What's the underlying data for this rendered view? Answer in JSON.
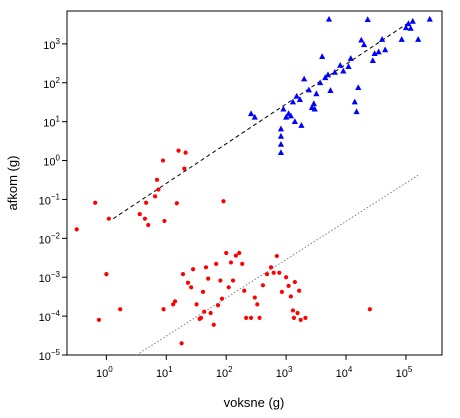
{
  "chart_data": {
    "type": "scatter",
    "title": "",
    "xlabel": "voksne (g)",
    "ylabel": "afkom (g)",
    "xscale": "log10",
    "yscale": "log10",
    "xlim": [
      0.22,
      400000
    ],
    "ylim": [
      1e-05,
      7000
    ],
    "grid": false,
    "legend": "none",
    "x_ticks": [
      {
        "value": 1,
        "label": "10",
        "exp": "0"
      },
      {
        "value": 10,
        "label": "10",
        "exp": "1"
      },
      {
        "value": 100,
        "label": "10",
        "exp": "2"
      },
      {
        "value": 1000,
        "label": "10",
        "exp": "3"
      },
      {
        "value": 10000,
        "label": "10",
        "exp": "4"
      },
      {
        "value": 100000,
        "label": "10",
        "exp": "5"
      }
    ],
    "y_ticks": [
      {
        "value": 1e-05,
        "label": "10",
        "exp": "−5"
      },
      {
        "value": 0.0001,
        "label": "10",
        "exp": "−4"
      },
      {
        "value": 0.001,
        "label": "10",
        "exp": "−3"
      },
      {
        "value": 0.01,
        "label": "10",
        "exp": "−2"
      },
      {
        "value": 0.1,
        "label": "10",
        "exp": "−1"
      },
      {
        "value": 1,
        "label": "10",
        "exp": "0"
      },
      {
        "value": 10,
        "label": "10",
        "exp": "1"
      },
      {
        "value": 100,
        "label": "10",
        "exp": "2"
      },
      {
        "value": 1000,
        "label": "10",
        "exp": "3"
      }
    ],
    "series": [
      {
        "marker": "triangle",
        "color": "#0000ff",
        "points": [
          [
            260,
            16
          ],
          [
            300,
            13
          ],
          [
            820,
            6.5
          ],
          [
            820,
            4.2
          ],
          [
            820,
            2.6
          ],
          [
            820,
            1.6
          ],
          [
            900,
            21
          ],
          [
            1000,
            13
          ],
          [
            1100,
            16
          ],
          [
            1200,
            14
          ],
          [
            1300,
            32
          ],
          [
            1400,
            10
          ],
          [
            1500,
            45
          ],
          [
            1700,
            37
          ],
          [
            1800,
            8
          ],
          [
            2000,
            125
          ],
          [
            2400,
            65
          ],
          [
            2700,
            23
          ],
          [
            2900,
            29
          ],
          [
            3000,
            21
          ],
          [
            3200,
            52
          ],
          [
            3700,
            100
          ],
          [
            4000,
            470
          ],
          [
            4500,
            135
          ],
          [
            5000,
            160
          ],
          [
            5200,
            4300
          ],
          [
            5500,
            63
          ],
          [
            6500,
            185
          ],
          [
            8000,
            280
          ],
          [
            9000,
            200
          ],
          [
            11000,
            260
          ],
          [
            12000,
            420
          ],
          [
            14000,
            32
          ],
          [
            15000,
            18
          ],
          [
            16000,
            75
          ],
          [
            18000,
            1250
          ],
          [
            20000,
            950
          ],
          [
            23000,
            4200
          ],
          [
            28000,
            370
          ],
          [
            30000,
            560
          ],
          [
            35000,
            620
          ],
          [
            40000,
            1300
          ],
          [
            45000,
            700
          ],
          [
            85000,
            1300
          ],
          [
            100000,
            2600
          ],
          [
            110000,
            3300
          ],
          [
            120000,
            2500
          ],
          [
            130000,
            3800
          ],
          [
            160000,
            1300
          ],
          [
            250000,
            4300
          ]
        ]
      },
      {
        "marker": "circle",
        "color": "#ff0000",
        "points": [
          [
            0.32,
            0.017
          ],
          [
            0.65,
            0.082
          ],
          [
            0.75,
            8e-05
          ],
          [
            1.0,
            0.0012
          ],
          [
            1.1,
            0.032
          ],
          [
            1.7,
            0.00015
          ],
          [
            3.6,
            0.042
          ],
          [
            4.4,
            0.032
          ],
          [
            4.6,
            0.082
          ],
          [
            5.0,
            0.022
          ],
          [
            6.5,
            0.12
          ],
          [
            7.0,
            0.32
          ],
          [
            7.4,
            0.18
          ],
          [
            8.8,
            1.0
          ],
          [
            9.0,
            0.00015
          ],
          [
            9.3,
            0.028
          ],
          [
            13,
            0.0002
          ],
          [
            14,
            0.00024
          ],
          [
            15,
            0.08
          ],
          [
            16,
            1.8
          ],
          [
            18,
            2e-05
          ],
          [
            19,
            0.0012
          ],
          [
            20,
            0.62
          ],
          [
            21,
            1.6
          ],
          [
            23,
            0.00072
          ],
          [
            26,
            0.00055
          ],
          [
            28,
            0.0016
          ],
          [
            32,
            0.0002
          ],
          [
            36,
            8.5e-05
          ],
          [
            38,
            9e-05
          ],
          [
            41,
            0.00042
          ],
          [
            43,
            0.00013
          ],
          [
            46,
            0.0018
          ],
          [
            50,
            0.00092
          ],
          [
            55,
            0.00012
          ],
          [
            62,
            6e-05
          ],
          [
            68,
            0.0022
          ],
          [
            73,
            0.00019
          ],
          [
            80,
            0.00082
          ],
          [
            85,
            0.00028
          ],
          [
            90,
            0.09
          ],
          [
            100,
            0.0042
          ],
          [
            110,
            0.00055
          ],
          [
            120,
            0.0024
          ],
          [
            130,
            0.00082
          ],
          [
            145,
            0.0036
          ],
          [
            165,
            0.0042
          ],
          [
            185,
            0.0022
          ],
          [
            200,
            0.00045
          ],
          [
            215,
            9e-05
          ],
          [
            260,
            9e-05
          ],
          [
            300,
            0.0003
          ],
          [
            330,
            0.0002
          ],
          [
            360,
            9e-05
          ],
          [
            410,
            0.00062
          ],
          [
            480,
            0.0012
          ],
          [
            560,
            0.0018
          ],
          [
            620,
            0.0013
          ],
          [
            700,
            0.0035
          ],
          [
            770,
            0.0013
          ],
          [
            850,
            0.00042
          ],
          [
            1000,
            0.001
          ],
          [
            1100,
            0.0006
          ],
          [
            1200,
            0.00032
          ],
          [
            1300,
            0.00014
          ],
          [
            1350,
            9e-05
          ],
          [
            1400,
            0.00075
          ],
          [
            1550,
            0.00012
          ],
          [
            1650,
            0.00045
          ],
          [
            1750,
            8e-05
          ],
          [
            2100,
            9e-05
          ],
          [
            25000,
            0.00015
          ]
        ]
      }
    ],
    "trendlines": [
      {
        "style": "dashed",
        "color": "#000000",
        "from": [
          1.3,
          0.032
        ],
        "to": [
          120000,
          3800
        ]
      },
      {
        "style": "dotted",
        "color": "#7f7f7f",
        "from": [
          3.2,
          1e-05
        ],
        "to": [
          160000,
          0.42
        ]
      }
    ]
  }
}
